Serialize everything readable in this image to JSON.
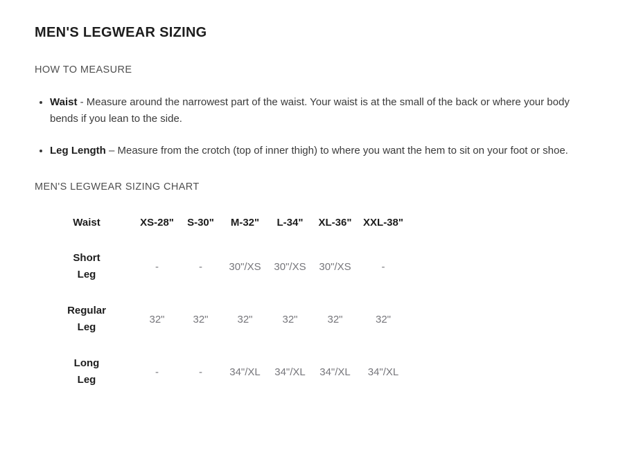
{
  "page": {
    "title": "MEN'S LEGWEAR SIZING",
    "measure_heading": "HOW TO MEASURE",
    "chart_heading": "MEN'S LEGWEAR SIZING CHART"
  },
  "bullets": [
    {
      "term": "Waist",
      "rest": " - Measure around the narrowest part of the waist. Your waist is at the small of the back or where your body bends if you lean to the side."
    },
    {
      "term": "Leg Length",
      "rest": " – Measure from the crotch (top of inner thigh) to where you want the hem to sit on your foot or shoe."
    }
  ],
  "chart_data": {
    "type": "table",
    "title": "MEN'S LEGWEAR SIZING CHART",
    "columns": [
      "Waist",
      "XS-28\"",
      "S-30\"",
      "M-32\"",
      "L-34\"",
      "XL-36\"",
      "XXL-38\""
    ],
    "rows": [
      {
        "label": {
          "line1": "Short",
          "line2": "Leg"
        },
        "values": [
          "-",
          "-",
          "30\"/XS",
          "30\"/XS",
          "30\"/XS",
          "-"
        ]
      },
      {
        "label": {
          "line1": "Regular",
          "line2": "Leg"
        },
        "values": [
          "32\"",
          "32\"",
          "32\"",
          "32\"",
          "32\"",
          "32\""
        ]
      },
      {
        "label": {
          "line1": "Long",
          "line2": "Leg"
        },
        "values": [
          "-",
          "-",
          "34\"/XL",
          "34\"/XL",
          "34\"/XL",
          "34\"/XL"
        ]
      }
    ]
  },
  "colors": {
    "background": "#ffffff",
    "title_text": "#1d1d1d",
    "heading_text": "#4f4f4f",
    "body_text": "#3a3a3a",
    "table_value_text": "#76767b"
  }
}
